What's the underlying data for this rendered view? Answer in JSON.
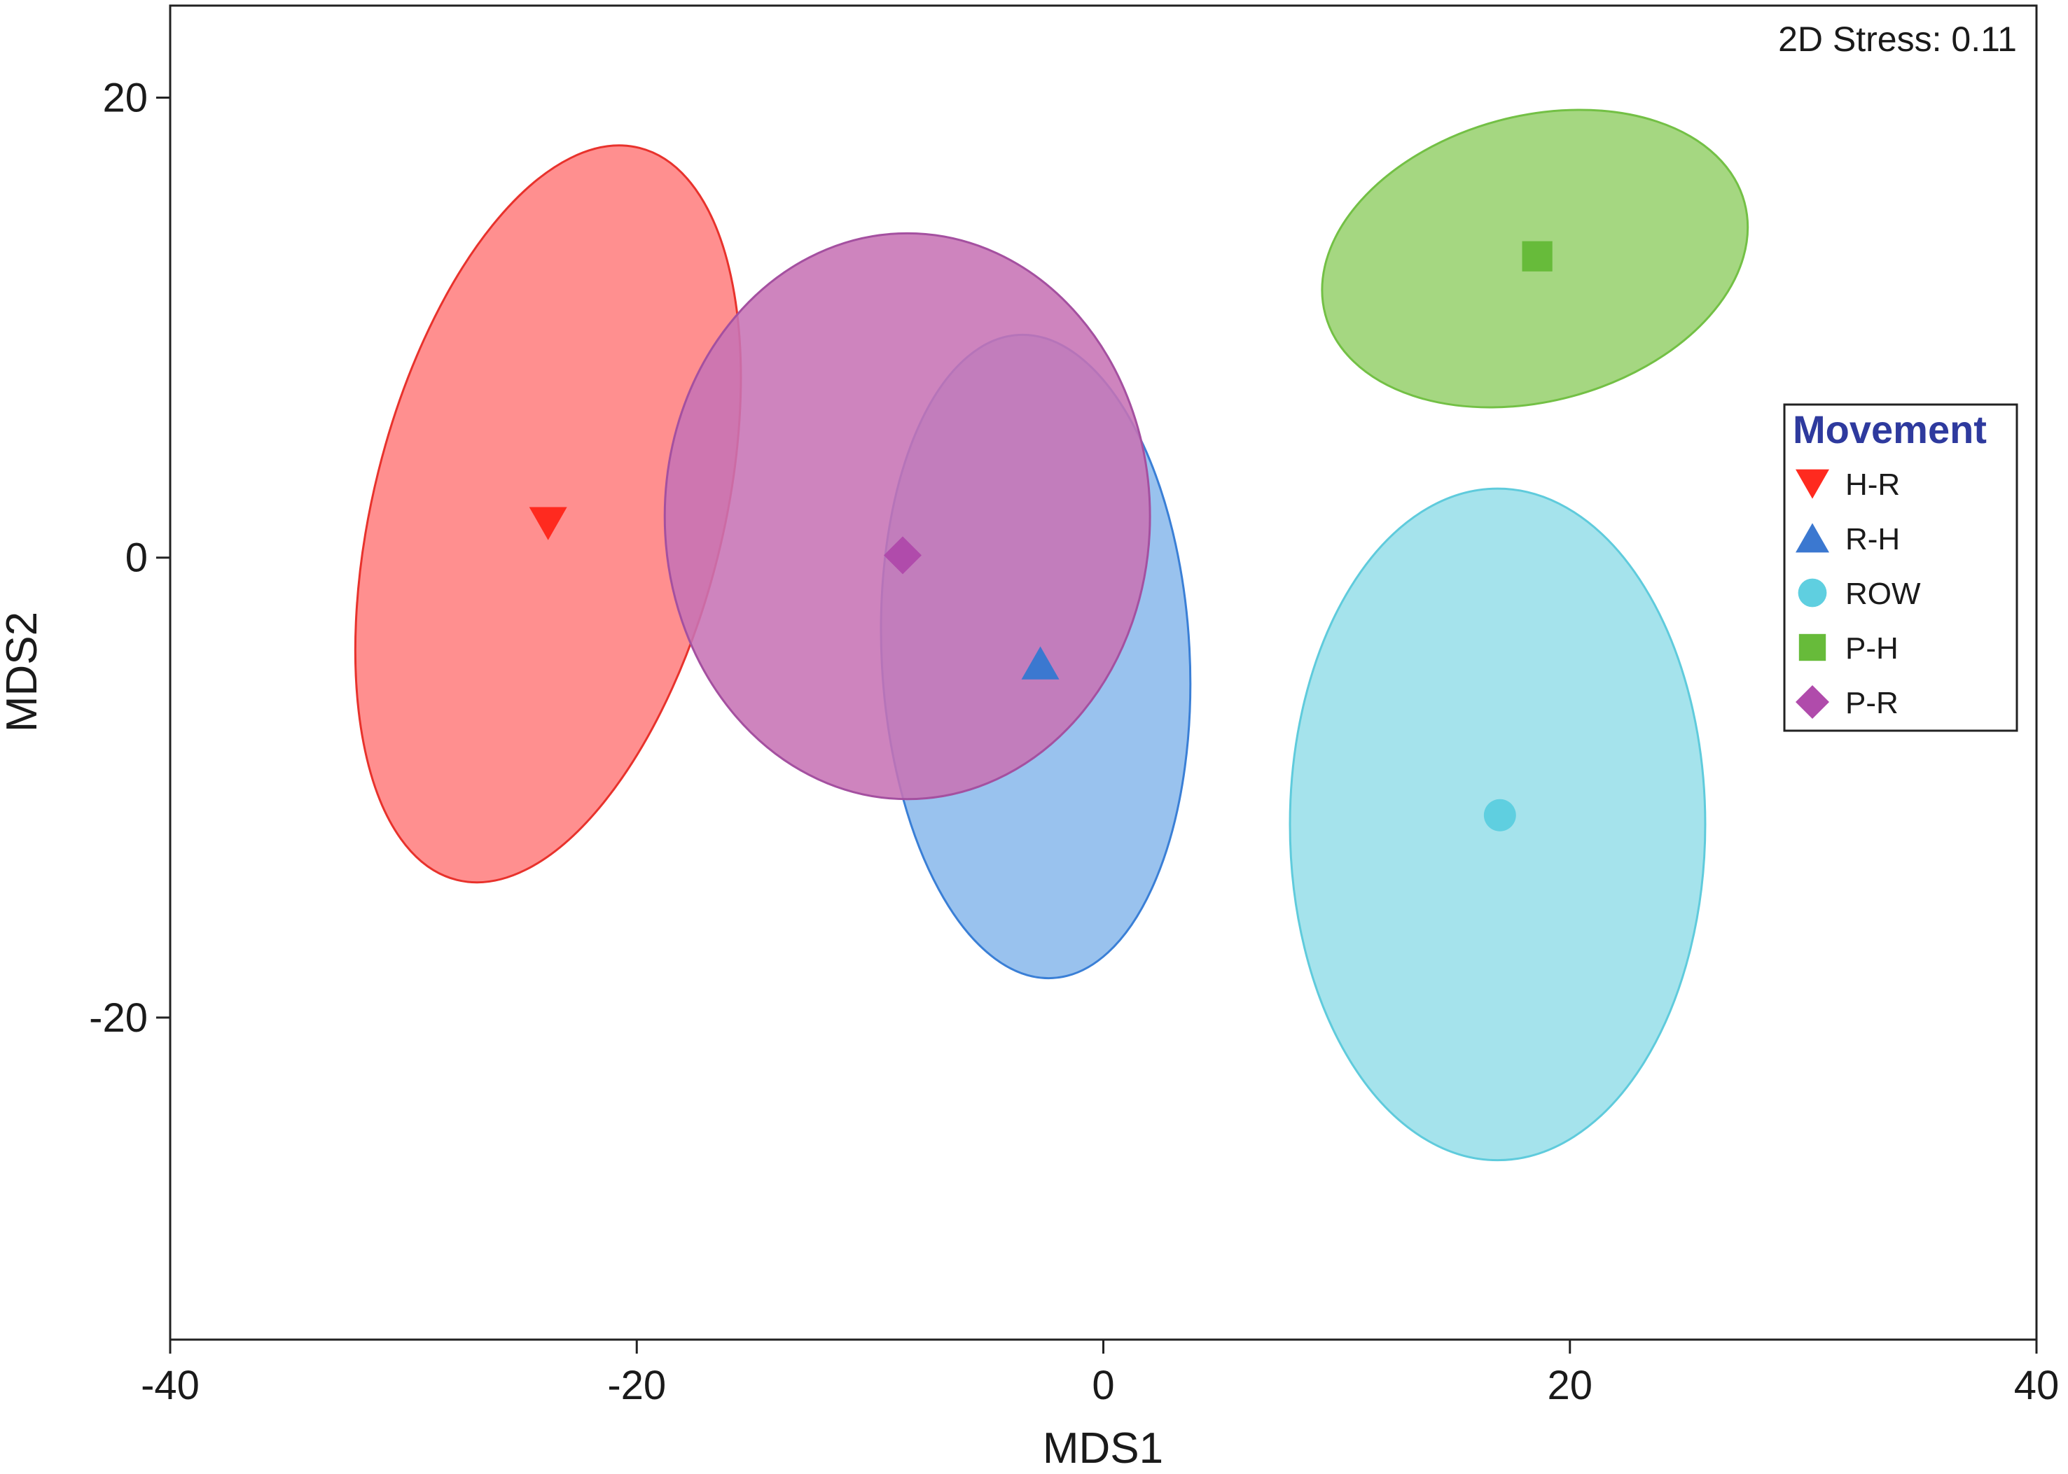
{
  "chart_data": {
    "type": "scatter",
    "title": "",
    "xlabel": "MDS1",
    "ylabel": "MDS2",
    "xlim": [
      -40,
      40
    ],
    "ylim": [
      -34,
      24
    ],
    "x_ticks": [
      -40,
      -20,
      0,
      20,
      40
    ],
    "y_ticks": [
      -20,
      0,
      20
    ],
    "x_tick_labels": [
      "-40",
      "-20",
      "0",
      "20",
      "40"
    ],
    "y_tick_labels": [
      "-20",
      "0",
      "20"
    ],
    "grid": false,
    "annotation": "2D Stress: 0.11",
    "legend": {
      "title": "Movement",
      "placement": "right"
    },
    "series": [
      {
        "name": "H-R",
        "marker": "triangle-down",
        "color": "#ff2a1f",
        "fill": "#ff7f7f",
        "stroke": "#e8322c",
        "centroid": [
          -23.8,
          1.5
        ],
        "ellipse": {
          "center": [
            -23.8,
            1.9
          ],
          "rx": 7.5,
          "ry": 16.4,
          "angle_deg": 14
        }
      },
      {
        "name": "R-H",
        "marker": "triangle-up",
        "color": "#3b78d0",
        "fill": "#8bbaec",
        "stroke": "#3a7fd6",
        "centroid": [
          -2.7,
          -4.6
        ],
        "ellipse": {
          "center": [
            -2.9,
            -4.3
          ],
          "rx": 6.6,
          "ry": 14.0,
          "angle_deg": -3
        }
      },
      {
        "name": "ROW",
        "marker": "circle",
        "color": "#5fcfe0",
        "fill": "#99dfe9",
        "stroke": "#5fcbdc",
        "centroid": [
          17.0,
          -11.2
        ],
        "ellipse": {
          "center": [
            16.9,
            -11.6
          ],
          "rx": 8.9,
          "ry": 14.6,
          "angle_deg": 0
        }
      },
      {
        "name": "P-H",
        "marker": "square",
        "color": "#67bb3a",
        "fill": "#98d26f",
        "stroke": "#73c045",
        "centroid": [
          18.6,
          13.1
        ],
        "ellipse": {
          "center": [
            18.5,
            13.0
          ],
          "rx": 9.3,
          "ry": 6.2,
          "angle_deg": -15
        }
      },
      {
        "name": "P-R",
        "marker": "diamond",
        "color": "#b04bab",
        "fill": "#c773b5",
        "stroke": "#a450a0",
        "centroid": [
          -8.6,
          0.1
        ],
        "ellipse": {
          "center": [
            -8.4,
            1.8
          ],
          "rx": 10.4,
          "ry": 12.3,
          "angle_deg": 0
        }
      }
    ]
  }
}
